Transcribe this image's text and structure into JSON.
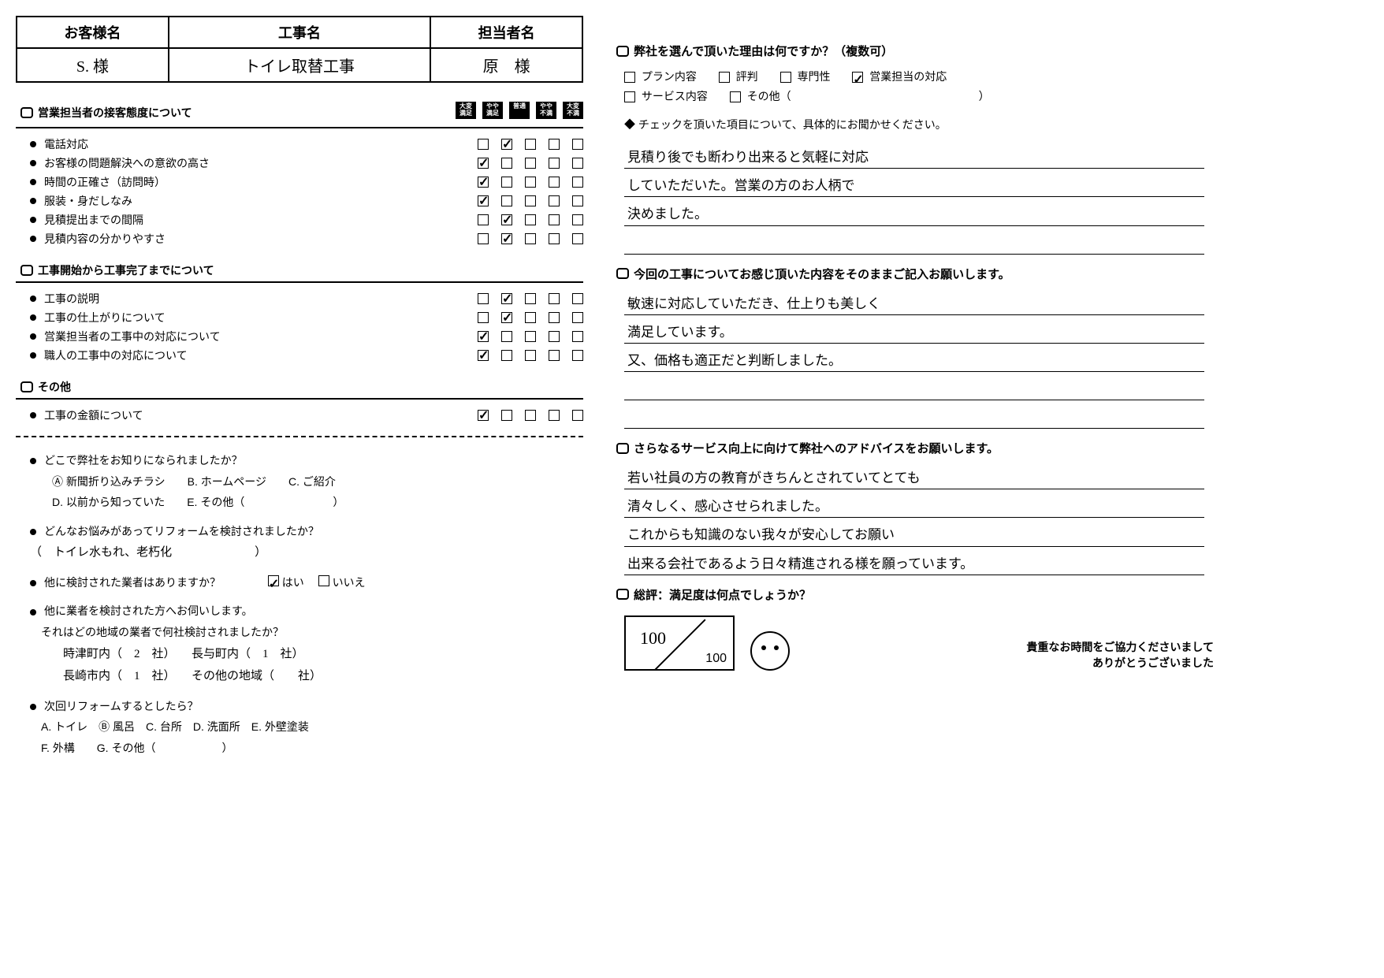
{
  "header": {
    "labels": {
      "customer": "お客様名",
      "project": "工事名",
      "staff": "担当者名"
    },
    "values": {
      "customer": "S. 様",
      "project": "トイレ取替工事",
      "staff": "原　様"
    }
  },
  "scale_labels": [
    "大変\n満足",
    "やや\n満足",
    "普通",
    "やや\n不満",
    "大変\n不満"
  ],
  "section1": {
    "title": "営業担当者の接客態度について",
    "items": [
      {
        "label": "電話対応",
        "checked": 1
      },
      {
        "label": "お客様の問題解決への意欲の高さ",
        "checked": 0
      },
      {
        "label": "時間の正確さ（訪問時）",
        "checked": 0
      },
      {
        "label": "服装・身だしなみ",
        "checked": 0
      },
      {
        "label": "見積提出までの間隔",
        "checked": 1
      },
      {
        "label": "見積内容の分かりやすさ",
        "checked": 1
      }
    ]
  },
  "section2": {
    "title": "工事開始から工事完了までについて",
    "items": [
      {
        "label": "工事の説明",
        "checked": 1
      },
      {
        "label": "工事の仕上がりについて",
        "checked": 1
      },
      {
        "label": "営業担当者の工事中の対応について",
        "checked": 0
      },
      {
        "label": "職人の工事中の対応について",
        "checked": 0
      }
    ]
  },
  "section3": {
    "title": "その他",
    "items": [
      {
        "label": "工事の金額について",
        "checked": 0
      }
    ]
  },
  "survey": {
    "q1": "どこで弊社をお知りになられましたか？",
    "q1_opts": {
      "a": "Ⓐ 新聞折り込みチラシ",
      "b": "B. ホームページ",
      "c": "C. ご紹介",
      "d": "D. 以前から知っていた",
      "e": "E. その他（"
    },
    "q2": "どんなお悩みがあってリフォームを検討されましたか？",
    "q2_ans": "（　トイレ水もれ、老朽化　　　　　　　）",
    "q3": "他に検討された業者はありますか？",
    "q3_yes": "はい",
    "q3_no": "いいえ",
    "q4": "他に業者を検討された方へお伺いします。",
    "q4_sub": "それはどの地域の業者で何社検討されましたか？",
    "q4_areas": {
      "togitsu": "時津町内（　2　社）",
      "nagayo": "長与町内（　1　社）",
      "nagasaki": "長崎市内（　1　社）",
      "other": "その他の地域（　　社）"
    },
    "q5": "次回リフォームするとしたら？",
    "q5_opts": {
      "a": "A. トイレ",
      "b": "Ⓑ 風呂",
      "c": "C. 台所",
      "d": "D. 洗面所",
      "e": "E. 外壁塗装",
      "f": "F. 外構",
      "g": "G. その他（　　　　　　）"
    }
  },
  "right": {
    "q1": "弊社を選んで頂いた理由は何ですか？（複数可）",
    "q1_opts": {
      "plan": "プラン内容",
      "rep": "評判",
      "spec": "専門性",
      "sales": "営業担当の対応",
      "service": "サービス内容",
      "other": "その他（"
    },
    "q1_sub": "チェックを頂いた項目について、具体的にお聞かせください。",
    "q1_ans": [
      "見積り後でも断わり出来ると気軽に対応",
      "していただいた。営業の方のお人柄で",
      "決めました。",
      ""
    ],
    "q2": "今回の工事についてお感じ頂いた内容をそのままご記入お願いします。",
    "q2_ans": [
      "敏速に対応していただき、仕上りも美しく",
      "満足しています。",
      "又、価格も適正だと判断しました。",
      "",
      ""
    ],
    "q3": "さらなるサービス向上に向けて弊社へのアドバイスをお願いします。",
    "q3_ans": [
      "若い社員の方の教育がきちんとされていてとても",
      "清々しく、感心させられました。",
      "これからも知識のない我々が安心してお願い",
      "出来る会社であるよう日々精進される様を願っています。"
    ],
    "score_q": "総評：満足度は何点でしょうか？",
    "score": "100",
    "score_den": "100",
    "thanks1": "貴重なお時間をご協力くださいまして",
    "thanks2": "ありがとうございました"
  }
}
